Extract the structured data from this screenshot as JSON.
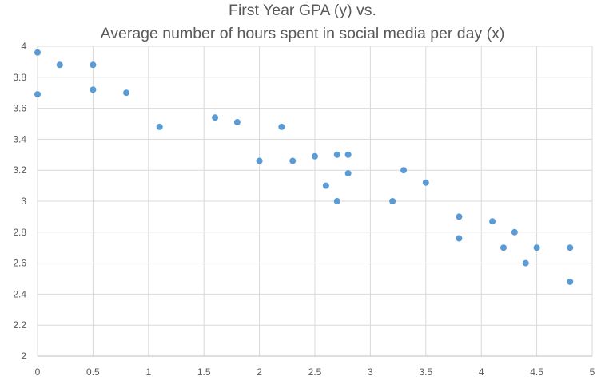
{
  "chart_data": {
    "type": "scatter",
    "title_lines": [
      "First Year GPA (y) vs.",
      "Average number of hours spent in social media per day (x)"
    ],
    "xlabel": "",
    "ylabel": "",
    "xlim": [
      0,
      5
    ],
    "ylim": [
      2,
      4
    ],
    "x_ticks": [
      0,
      0.5,
      1,
      1.5,
      2,
      2.5,
      3,
      3.5,
      4,
      4.5,
      5
    ],
    "x_tick_labels": [
      "0",
      "0.5",
      "1",
      "1.5",
      "2",
      "2.5",
      "3",
      "3.5",
      "4",
      "4.5",
      "5"
    ],
    "y_ticks": [
      2,
      2.2,
      2.4,
      2.6,
      2.8,
      3,
      3.2,
      3.4,
      3.6,
      3.8,
      4
    ],
    "y_tick_labels": [
      "2",
      "2.2",
      "2.4",
      "2.6",
      "2.8",
      "3",
      "3.2",
      "3.4",
      "3.6",
      "3.8",
      "4"
    ],
    "grid": true,
    "legend": "none",
    "marker_color": "#5B9BD5",
    "grid_color": "#D9D9D9",
    "points": [
      {
        "x": 0,
        "y": 3.96
      },
      {
        "x": 0,
        "y": 3.69
      },
      {
        "x": 0.2,
        "y": 3.88
      },
      {
        "x": 0.5,
        "y": 3.88
      },
      {
        "x": 0.5,
        "y": 3.72
      },
      {
        "x": 0.8,
        "y": 3.7
      },
      {
        "x": 1.1,
        "y": 3.48
      },
      {
        "x": 1.6,
        "y": 3.54
      },
      {
        "x": 1.8,
        "y": 3.51
      },
      {
        "x": 2.0,
        "y": 3.26
      },
      {
        "x": 2.2,
        "y": 3.48
      },
      {
        "x": 2.3,
        "y": 3.26
      },
      {
        "x": 2.5,
        "y": 3.29
      },
      {
        "x": 2.6,
        "y": 3.1
      },
      {
        "x": 2.7,
        "y": 3.3
      },
      {
        "x": 2.7,
        "y": 3.0
      },
      {
        "x": 2.8,
        "y": 3.3
      },
      {
        "x": 2.8,
        "y": 3.18
      },
      {
        "x": 3.2,
        "y": 3.0
      },
      {
        "x": 3.3,
        "y": 3.2
      },
      {
        "x": 3.5,
        "y": 3.12
      },
      {
        "x": 3.8,
        "y": 2.9
      },
      {
        "x": 3.8,
        "y": 2.76
      },
      {
        "x": 4.1,
        "y": 2.87
      },
      {
        "x": 4.2,
        "y": 2.7
      },
      {
        "x": 4.3,
        "y": 2.8
      },
      {
        "x": 4.4,
        "y": 2.6
      },
      {
        "x": 4.5,
        "y": 2.7
      },
      {
        "x": 4.8,
        "y": 2.7
      },
      {
        "x": 4.8,
        "y": 2.48
      }
    ]
  }
}
